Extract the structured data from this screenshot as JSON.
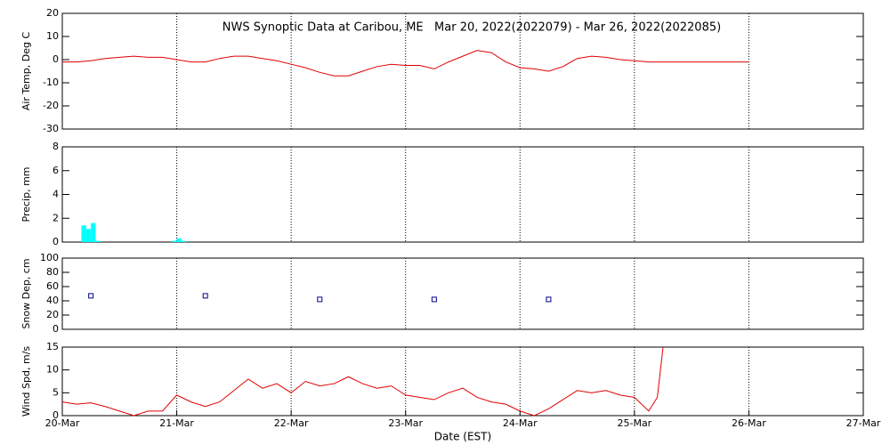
{
  "chart_data": [
    {
      "type": "line",
      "title": "NWS Synoptic Data at Caribou, ME   Mar 20, 2022(2022079) - Mar 26, 2022(2022085)",
      "y_label": "Air Temp, Deg C",
      "xlim": [
        0,
        7
      ],
      "ylim": [
        -30,
        20
      ],
      "yticks": [
        -30,
        -20,
        -10,
        0,
        10,
        20
      ],
      "series": [
        {
          "color": "#e00000",
          "x": [
            0,
            0.125,
            0.25,
            0.375,
            0.5,
            0.625,
            0.75,
            0.875,
            1,
            1.125,
            1.25,
            1.375,
            1.5,
            1.625,
            1.75,
            1.875,
            2,
            2.125,
            2.25,
            2.375,
            2.5,
            2.625,
            2.75,
            2.875,
            3,
            3.125,
            3.25,
            3.375,
            3.5,
            3.625,
            3.75,
            3.875,
            4,
            4.125,
            4.25,
            4.375,
            4.5,
            4.625,
            4.75,
            4.875,
            5,
            5.125,
            5.25,
            5.375,
            5.5,
            5.625,
            5.75,
            5.875,
            6
          ],
          "values": [
            -1,
            -1,
            -0.5,
            0.5,
            1,
            1.5,
            1,
            1,
            0,
            -1,
            -1,
            0.5,
            1.5,
            1.5,
            0.5,
            -0.5,
            -2,
            -3.5,
            -5.5,
            -7,
            -7,
            -5,
            -3,
            -2,
            -2.5,
            -2.5,
            -4,
            -1,
            1.5,
            4,
            3,
            -1,
            -3.5,
            -4,
            -5,
            -3,
            0.5,
            1.5,
            1,
            0,
            -0.5,
            -1,
            -1,
            -1,
            -1,
            -1,
            -1,
            -1,
            -1
          ]
        }
      ]
    },
    {
      "type": "bar",
      "y_label": "Precip, mm",
      "xlim": [
        0,
        7
      ],
      "ylim": [
        0,
        8
      ],
      "yticks": [
        0,
        2,
        4,
        6,
        8
      ],
      "series": [
        {
          "color": "#00ffff",
          "x": [
            0.167,
            0.208,
            0.25,
            0.292,
            0.958,
            1.0,
            1.042
          ],
          "values": [
            1.4,
            1.1,
            1.6,
            0.1,
            0.1,
            0.3,
            0.1
          ]
        }
      ]
    },
    {
      "type": "scatter",
      "y_label": "Snow Dep, cm",
      "xlim": [
        0,
        7
      ],
      "ylim": [
        0,
        100
      ],
      "yticks": [
        0,
        20,
        40,
        60,
        80,
        100
      ],
      "series": [
        {
          "color": "#00008b",
          "x": [
            0.25,
            1.25,
            2.25,
            3.25,
            4.25
          ],
          "values": [
            47,
            47,
            42,
            42,
            42
          ]
        }
      ]
    },
    {
      "type": "line",
      "y_label": "Wind Spd, m/s",
      "x_label": "Date (EST)",
      "xlim": [
        0,
        7
      ],
      "ylim": [
        0,
        15
      ],
      "yticks": [
        0,
        5,
        10,
        15
      ],
      "xticks": [
        {
          "value": 0,
          "label": "20-Mar"
        },
        {
          "value": 1,
          "label": "21-Mar"
        },
        {
          "value": 2,
          "label": "22-Mar"
        },
        {
          "value": 3,
          "label": "23-Mar"
        },
        {
          "value": 4,
          "label": "24-Mar"
        },
        {
          "value": 5,
          "label": "25-Mar"
        },
        {
          "value": 6,
          "label": "26-Mar"
        },
        {
          "value": 7,
          "label": "27-Mar"
        }
      ],
      "series": [
        {
          "color": "#e00000",
          "x": [
            0,
            0.125,
            0.25,
            0.375,
            0.5,
            0.625,
            0.75,
            0.875,
            1,
            1.125,
            1.25,
            1.375,
            1.5,
            1.625,
            1.75,
            1.875,
            2,
            2.125,
            2.25,
            2.375,
            2.5,
            2.625,
            2.75,
            2.875,
            3,
            3.125,
            3.25,
            3.375,
            3.5,
            3.625,
            3.75,
            3.875,
            4,
            4.125,
            4.25,
            4.375,
            4.5,
            4.625,
            4.75,
            4.875,
            5,
            5.125,
            5.2,
            5.25
          ],
          "values": [
            3,
            2.5,
            2.8,
            2,
            1,
            0,
            1,
            1,
            4.5,
            3,
            2,
            3,
            5.5,
            8,
            6,
            7,
            5,
            7.5,
            6.5,
            7,
            8.5,
            7,
            6,
            6.5,
            4.5,
            4,
            3.5,
            5,
            6,
            4,
            3,
            2.5,
            1,
            0,
            1.5,
            3.5,
            5.5,
            5,
            5.5,
            4.5,
            4,
            1,
            4,
            15
          ]
        }
      ]
    }
  ]
}
